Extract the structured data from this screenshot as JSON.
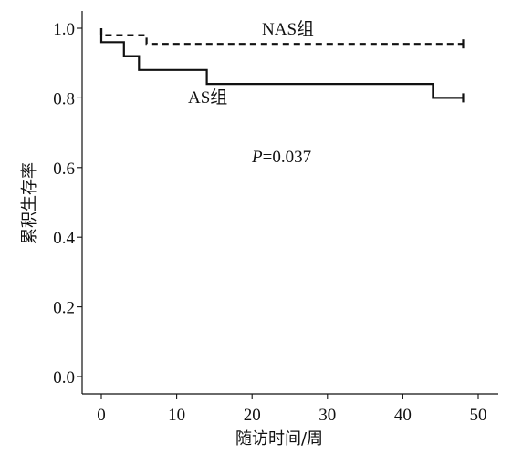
{
  "chart_data": {
    "type": "line",
    "subtype": "kaplan-meier step",
    "xlabel": "随访时间/周",
    "ylabel": "累积生存率",
    "xlim": [
      0,
      50
    ],
    "ylim": [
      0.0,
      1.0
    ],
    "x_ticks": [
      "0",
      "10",
      "20",
      "30",
      "40",
      "50"
    ],
    "y_ticks": [
      "0.0",
      "0.2",
      "0.4",
      "0.6",
      "0.8",
      "1.0"
    ],
    "grid": false,
    "annotation": {
      "italic": "P",
      "rest": "=0.037"
    },
    "series": [
      {
        "name": "NAS组",
        "style": "dashed",
        "color": "#111111",
        "x": [
          0,
          0,
          6,
          6,
          48
        ],
        "y": [
          1.0,
          0.98,
          0.98,
          0.955,
          0.955
        ],
        "censor": [
          [
            48,
            0.955
          ]
        ]
      },
      {
        "name": "AS组",
        "style": "solid",
        "color": "#111111",
        "x": [
          0,
          0,
          3,
          3,
          5,
          5,
          14,
          14,
          44,
          44,
          48
        ],
        "y": [
          1.0,
          0.96,
          0.96,
          0.92,
          0.92,
          0.88,
          0.88,
          0.84,
          0.84,
          0.8,
          0.8
        ],
        "censor": [
          [
            48,
            0.8
          ]
        ]
      }
    ]
  }
}
